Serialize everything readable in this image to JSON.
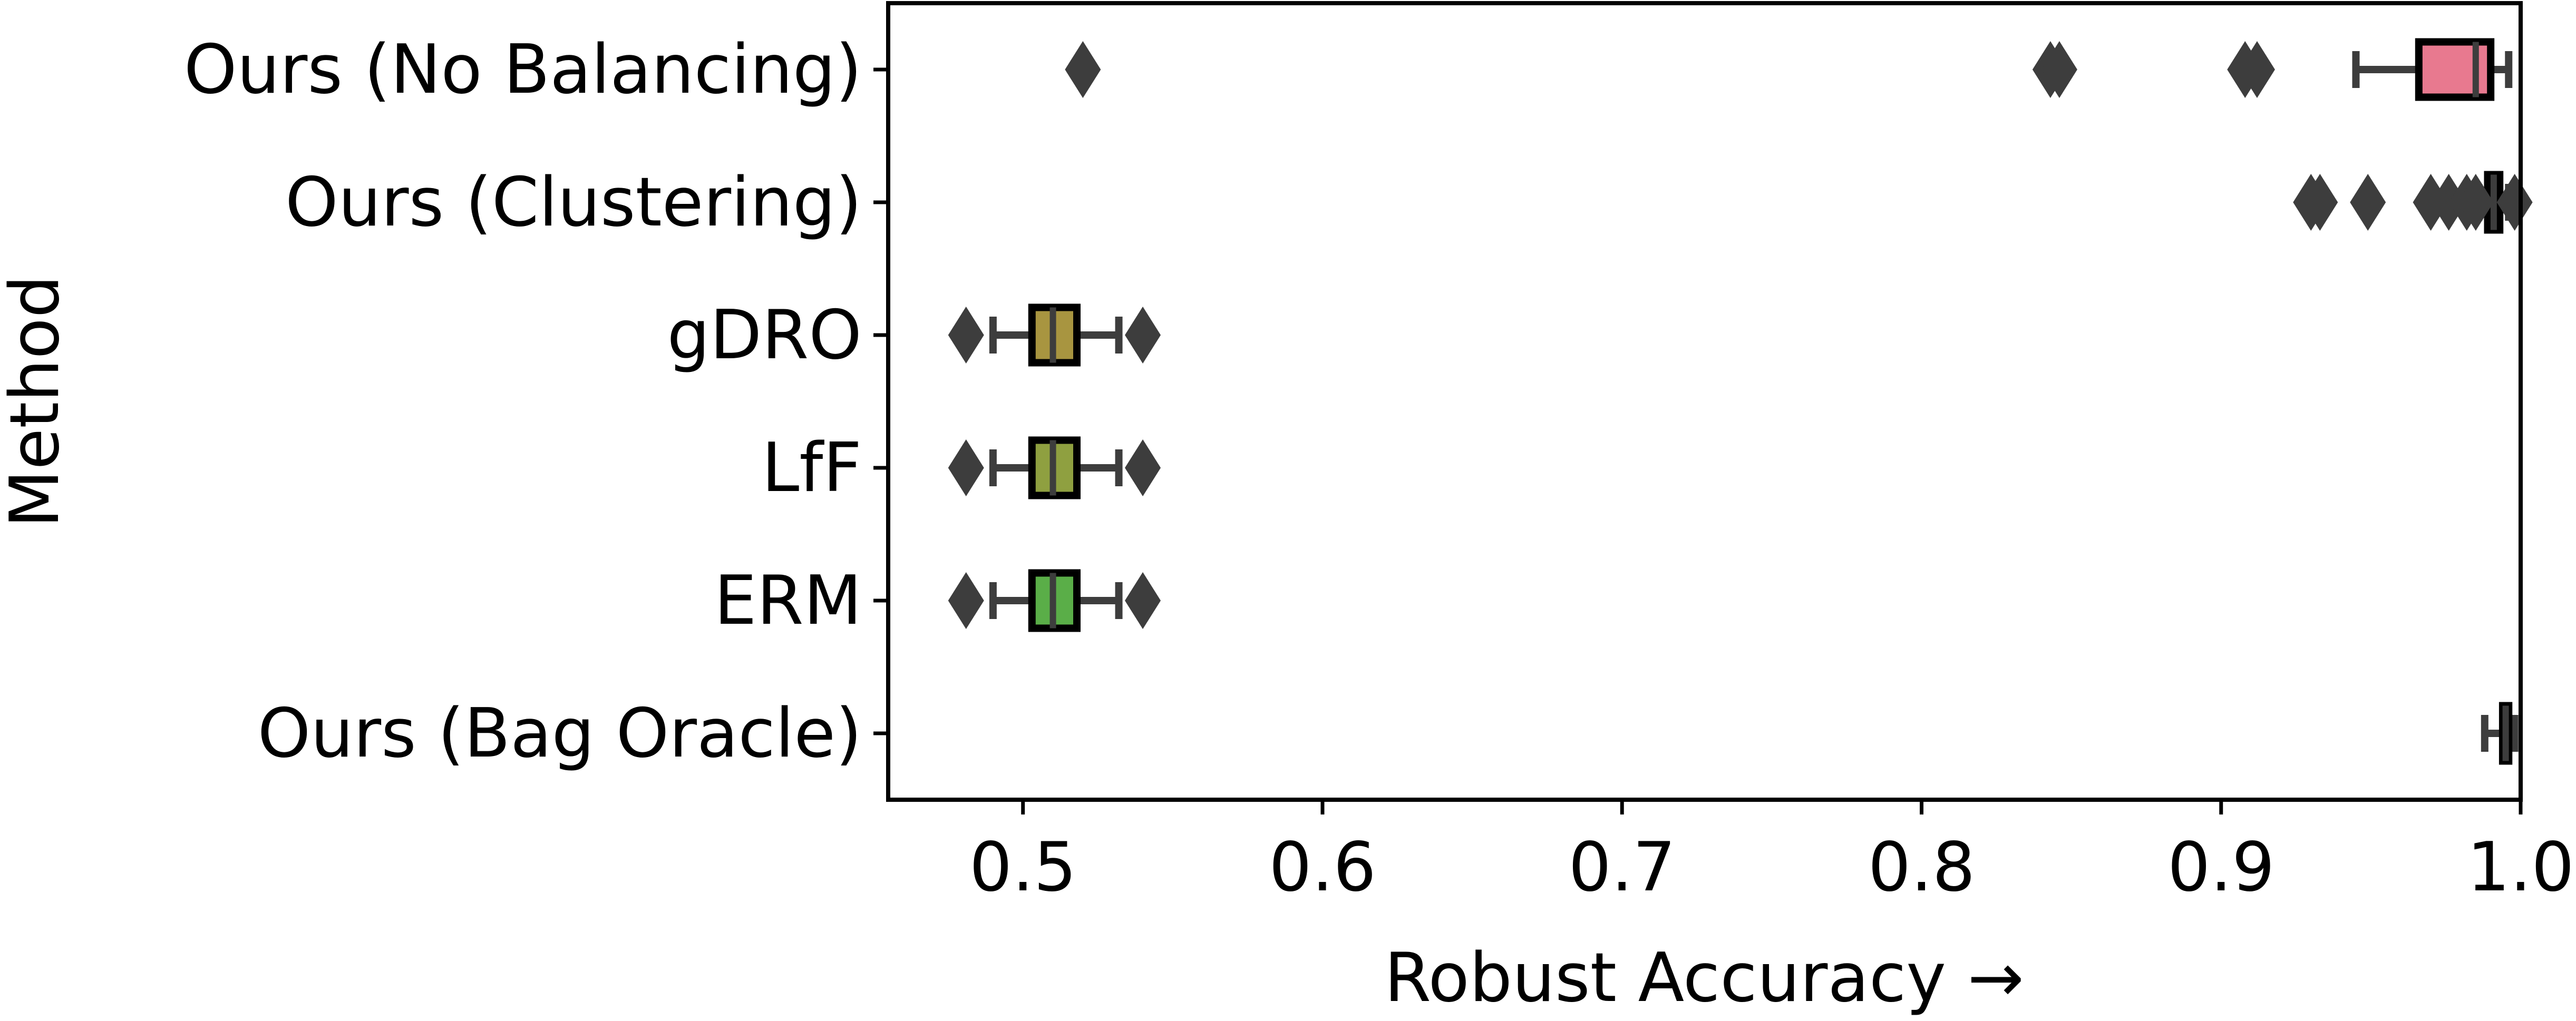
{
  "chart_data": {
    "type": "box",
    "orientation": "horizontal",
    "xlabel": "Robust Accuracy →",
    "ylabel": "Method",
    "xlim": [
      0.455,
      1.0
    ],
    "xticks": [
      0.5,
      0.6,
      0.7,
      0.8,
      0.9,
      1.0
    ],
    "xtick_labels": [
      "0.5",
      "0.6",
      "0.7",
      "0.8",
      "0.9",
      "1.0"
    ],
    "grid": false,
    "categories": [
      "Ours (No Balancing)",
      "Ours (Clustering)",
      "gDRO",
      "LfF",
      "ERM",
      "Ours (Bag Oracle)"
    ],
    "boxes": [
      {
        "label": "Ours (No Balancing)",
        "color": "#e8798f",
        "whisker_low": 0.945,
        "q1": 0.966,
        "median": 0.985,
        "q3": 0.99,
        "whisker_high": 0.996,
        "outliers": [
          0.52,
          0.843,
          0.846,
          0.908,
          0.912
        ]
      },
      {
        "label": "Ours (Clustering)",
        "color": "#d8a45a",
        "whisker_low": 0.986,
        "q1": 0.989,
        "median": 0.991,
        "q3": 0.993,
        "whisker_high": 0.996,
        "outliers": [
          0.93,
          0.933,
          0.949,
          0.97,
          0.976,
          0.982,
          0.985,
          0.998
        ]
      },
      {
        "label": "gDRO",
        "color": "#a89540",
        "whisker_low": 0.49,
        "q1": 0.503,
        "median": 0.51,
        "q3": 0.518,
        "whisker_high": 0.532,
        "outliers": [
          0.481,
          0.54
        ]
      },
      {
        "label": "LfF",
        "color": "#8fa040",
        "whisker_low": 0.49,
        "q1": 0.503,
        "median": 0.51,
        "q3": 0.518,
        "whisker_high": 0.532,
        "outliers": [
          0.481,
          0.54
        ]
      },
      {
        "label": "ERM",
        "color": "#5aae48",
        "whisker_low": 0.49,
        "q1": 0.503,
        "median": 0.51,
        "q3": 0.518,
        "whisker_high": 0.532,
        "outliers": [
          0.481,
          0.54
        ]
      },
      {
        "label": "Ours (Bag Oracle)",
        "color": "#3aae8a",
        "whisker_low": 0.988,
        "q1": 0.994,
        "median": 0.995,
        "q3": 0.996,
        "whisker_high": 0.998,
        "outliers": []
      }
    ]
  }
}
